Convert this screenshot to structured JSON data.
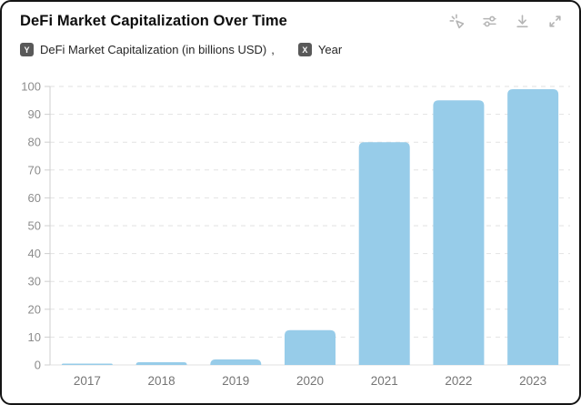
{
  "card": {
    "title": "DeFi Market Capitalization Over Time"
  },
  "toolbar": {
    "icons": [
      "magic-pointer",
      "sliders",
      "download",
      "expand"
    ]
  },
  "legend": {
    "y_badge": "Y",
    "y_label": "DeFi Market Capitalization (in billions USD)",
    "separator": ",",
    "x_badge": "X",
    "x_label": "Year"
  },
  "chart_data": {
    "type": "bar",
    "title": "DeFi Market Capitalization Over Time",
    "categories": [
      "2017",
      "2018",
      "2019",
      "2020",
      "2021",
      "2022",
      "2023"
    ],
    "values": [
      0.5,
      1,
      2,
      12.5,
      80,
      95,
      99
    ],
    "xlabel": "Year",
    "ylabel": "DeFi Market Capitalization (in billions USD)",
    "ylim": [
      0,
      100
    ],
    "ytick_step": 10,
    "grid": true,
    "legend_position": "top-left",
    "bar_color": "#97cce9"
  },
  "colors": {
    "bar": "#97cce9",
    "gridline": "#e2e2e2",
    "axis_line": "#cfcfcf",
    "baseline": "#e0e0e0",
    "ytick_text": "#8c8c8c",
    "xtick_text": "#757575",
    "badge_bg": "#595959",
    "icon": "#b5b5b5",
    "title_text": "#0d0d0d",
    "card_border": "#141414"
  }
}
